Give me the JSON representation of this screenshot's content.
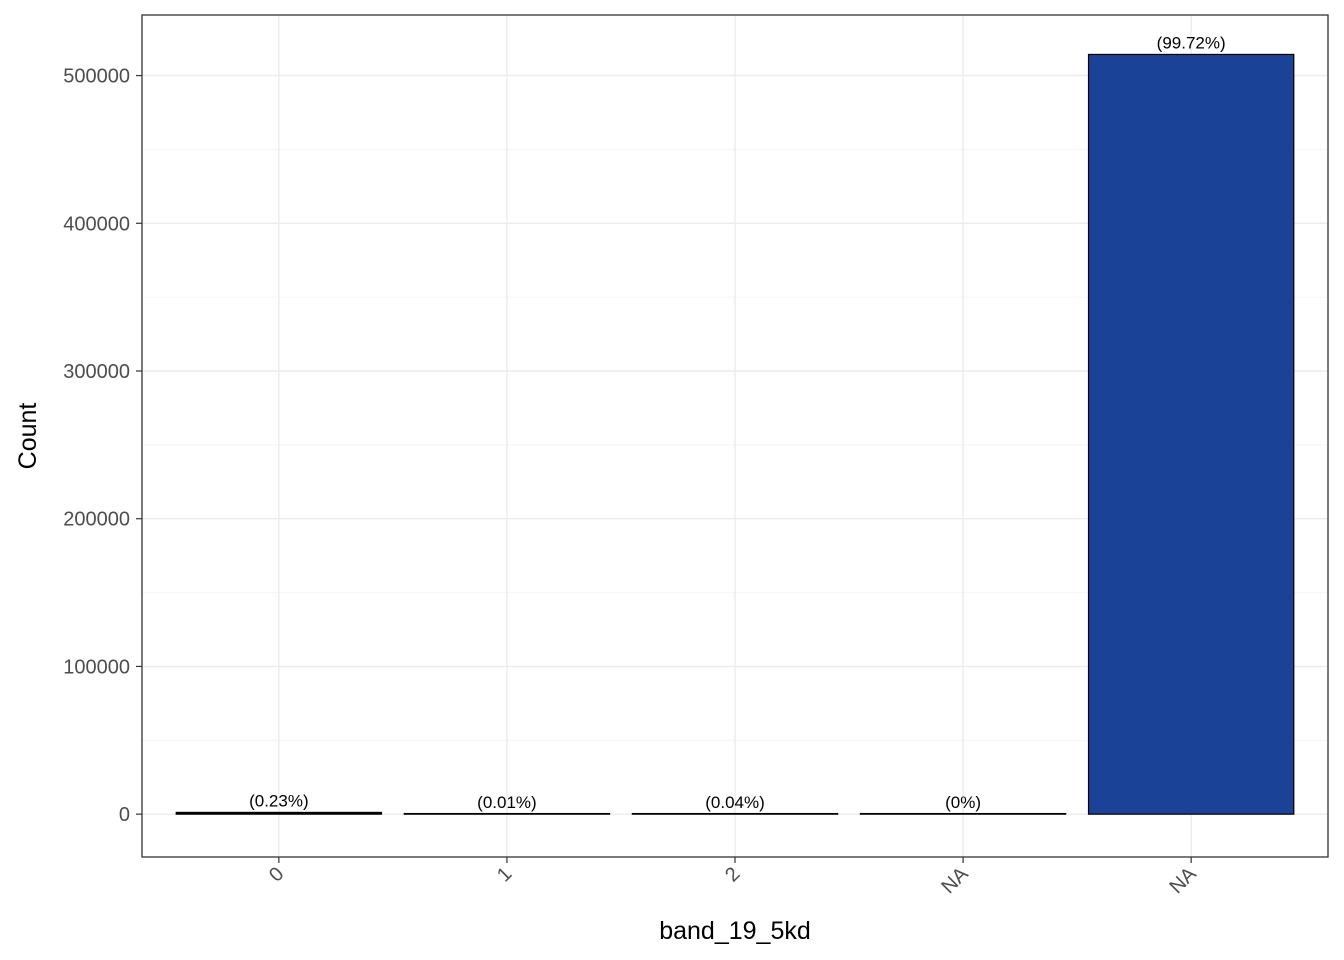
{
  "chart_data": {
    "type": "bar",
    "categories": [
      "0",
      "1",
      "2",
      "NA",
      "NA"
    ],
    "values": [
      1180,
      50,
      200,
      5,
      514300
    ],
    "labels": [
      "(0.23%)",
      "(0.01%)",
      "(0.04%)",
      "(0%)",
      "(99.72%)"
    ],
    "xlabel": "band_19_5kd",
    "ylabel": "Count",
    "ylim": [
      -29000,
      541000
    ],
    "yticks": [
      0,
      100000,
      200000,
      300000,
      400000,
      500000
    ],
    "ytick_labels": [
      "0",
      "100000",
      "200000",
      "300000",
      "400000",
      "500000"
    ],
    "grid": true,
    "colors": {
      "bar_fill": [
        "#000000",
        "#000000",
        "#000000",
        "#000000",
        "#1a4397"
      ],
      "bar_stroke": "#000000",
      "grid_major": "#ebebeb",
      "grid_minor": "#f4f4f4",
      "panel_border": "#333333"
    }
  }
}
